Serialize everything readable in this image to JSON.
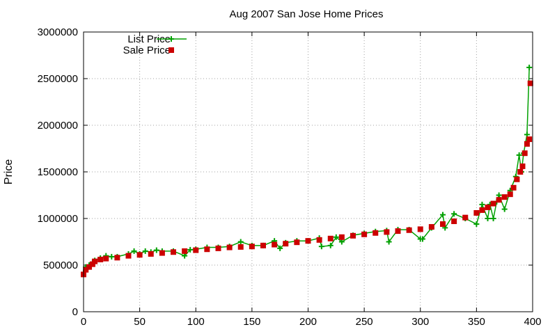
{
  "chart_data": {
    "type": "scatter",
    "title": "Aug 2007 San Jose Home Prices",
    "xlabel": "",
    "ylabel": "Price",
    "xlim": [
      0,
      400
    ],
    "ylim": [
      0,
      3000000
    ],
    "xticks": [
      0,
      50,
      100,
      150,
      200,
      250,
      300,
      350,
      400
    ],
    "yticks": [
      0,
      500000,
      1000000,
      1500000,
      2000000,
      2500000,
      3000000
    ],
    "grid": true,
    "legend": "top-left",
    "series": [
      {
        "name": "List Price",
        "color": "#00a000",
        "marker": "plus",
        "line": true,
        "points": [
          [
            0,
            420000
          ],
          [
            2,
            480000
          ],
          [
            5,
            500000
          ],
          [
            8,
            530000
          ],
          [
            10,
            550000
          ],
          [
            15,
            575000
          ],
          [
            20,
            600000
          ],
          [
            25,
            590000
          ],
          [
            30,
            590000
          ],
          [
            40,
            620000
          ],
          [
            45,
            650000
          ],
          [
            50,
            620000
          ],
          [
            55,
            650000
          ],
          [
            60,
            640000
          ],
          [
            65,
            660000
          ],
          [
            70,
            650000
          ],
          [
            80,
            650000
          ],
          [
            90,
            600000
          ],
          [
            95,
            665000
          ],
          [
            100,
            670000
          ],
          [
            110,
            690000
          ],
          [
            120,
            690000
          ],
          [
            130,
            700000
          ],
          [
            140,
            750000
          ],
          [
            150,
            710000
          ],
          [
            160,
            710000
          ],
          [
            170,
            760000
          ],
          [
            175,
            680000
          ],
          [
            180,
            740000
          ],
          [
            190,
            760000
          ],
          [
            200,
            760000
          ],
          [
            210,
            790000
          ],
          [
            212,
            700000
          ],
          [
            220,
            710000
          ],
          [
            225,
            800000
          ],
          [
            230,
            750000
          ],
          [
            240,
            820000
          ],
          [
            250,
            840000
          ],
          [
            260,
            860000
          ],
          [
            270,
            870000
          ],
          [
            272,
            750000
          ],
          [
            280,
            880000
          ],
          [
            290,
            880000
          ],
          [
            300,
            780000
          ],
          [
            302,
            780000
          ],
          [
            310,
            900000
          ],
          [
            320,
            1040000
          ],
          [
            322,
            900000
          ],
          [
            330,
            1050000
          ],
          [
            340,
            1000000
          ],
          [
            350,
            940000
          ],
          [
            355,
            1150000
          ],
          [
            360,
            1000000
          ],
          [
            362,
            1150000
          ],
          [
            365,
            1000000
          ],
          [
            368,
            1180000
          ],
          [
            370,
            1250000
          ],
          [
            375,
            1100000
          ],
          [
            380,
            1300000
          ],
          [
            385,
            1450000
          ],
          [
            388,
            1680000
          ],
          [
            390,
            1500000
          ],
          [
            392,
            1700000
          ],
          [
            395,
            1900000
          ],
          [
            397,
            2620000
          ]
        ]
      },
      {
        "name": "Sale Price",
        "color": "#cc0000",
        "marker": "square",
        "line": false,
        "points": [
          [
            0,
            400000
          ],
          [
            2,
            450000
          ],
          [
            5,
            480000
          ],
          [
            8,
            510000
          ],
          [
            10,
            540000
          ],
          [
            15,
            560000
          ],
          [
            20,
            570000
          ],
          [
            30,
            580000
          ],
          [
            40,
            600000
          ],
          [
            50,
            610000
          ],
          [
            60,
            620000
          ],
          [
            70,
            630000
          ],
          [
            80,
            640000
          ],
          [
            90,
            650000
          ],
          [
            100,
            660000
          ],
          [
            110,
            670000
          ],
          [
            120,
            680000
          ],
          [
            130,
            690000
          ],
          [
            140,
            695000
          ],
          [
            150,
            700000
          ],
          [
            160,
            710000
          ],
          [
            170,
            720000
          ],
          [
            180,
            730000
          ],
          [
            190,
            745000
          ],
          [
            200,
            760000
          ],
          [
            210,
            770000
          ],
          [
            220,
            785000
          ],
          [
            230,
            800000
          ],
          [
            240,
            815000
          ],
          [
            250,
            830000
          ],
          [
            260,
            845000
          ],
          [
            270,
            855000
          ],
          [
            280,
            865000
          ],
          [
            290,
            875000
          ],
          [
            300,
            885000
          ],
          [
            310,
            910000
          ],
          [
            320,
            940000
          ],
          [
            330,
            970000
          ],
          [
            340,
            1010000
          ],
          [
            350,
            1060000
          ],
          [
            355,
            1090000
          ],
          [
            360,
            1120000
          ],
          [
            365,
            1160000
          ],
          [
            370,
            1200000
          ],
          [
            375,
            1230000
          ],
          [
            380,
            1260000
          ],
          [
            383,
            1330000
          ],
          [
            386,
            1420000
          ],
          [
            389,
            1500000
          ],
          [
            391,
            1560000
          ],
          [
            393,
            1700000
          ],
          [
            395,
            1800000
          ],
          [
            397,
            1850000
          ],
          [
            398,
            2450000
          ]
        ]
      }
    ]
  }
}
